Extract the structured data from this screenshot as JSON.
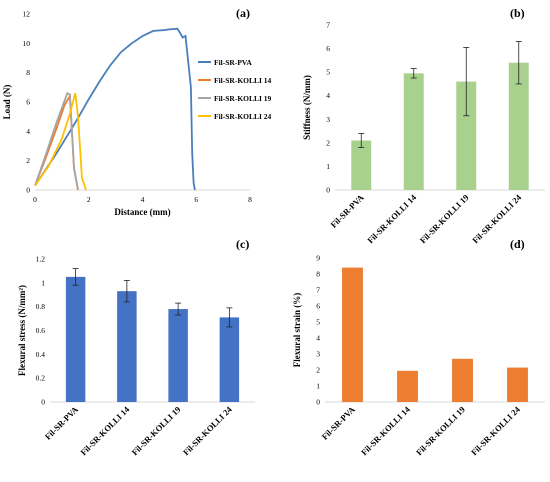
{
  "chart_data": [
    {
      "type": "line",
      "panel_label": "(a)",
      "xlabel": "Distance (mm)",
      "ylabel": "Load (N)",
      "xlim": [
        0,
        8
      ],
      "ylim": [
        0,
        12
      ],
      "xticks": [
        0,
        2,
        4,
        6,
        8
      ],
      "yticks": [
        0,
        2,
        4,
        6,
        8,
        10,
        12
      ],
      "legend_position": "right",
      "series": [
        {
          "name": "Fil-SR-PVA",
          "color": "#4a7ebb",
          "x": [
            0,
            0.4,
            0.8,
            1.2,
            1.6,
            2.0,
            2.4,
            2.8,
            3.2,
            3.6,
            4.0,
            4.4,
            4.8,
            5.0,
            5.3,
            5.5,
            5.6,
            5.8,
            5.85,
            5.9,
            5.95
          ],
          "y": [
            0.3,
            1.4,
            2.5,
            3.7,
            4.9,
            6.2,
            7.4,
            8.5,
            9.4,
            10.0,
            10.5,
            10.85,
            10.9,
            10.95,
            11.0,
            10.4,
            10.5,
            7.0,
            2.5,
            0.5,
            0
          ]
        },
        {
          "name": "Fil-SR-KOLLI 14",
          "color": "#ed7d31",
          "x": [
            0,
            0.4,
            0.8,
            1.1,
            1.3,
            1.45,
            1.6
          ],
          "y": [
            0.3,
            2.2,
            4.2,
            5.8,
            6.4,
            1.5,
            0
          ]
        },
        {
          "name": "Fil-SR-KOLLI 19",
          "color": "#a5a5a5",
          "x": [
            0,
            0.4,
            0.8,
            1.0,
            1.2,
            1.3,
            1.45,
            1.6
          ],
          "y": [
            0.3,
            2.4,
            4.6,
            5.6,
            6.6,
            6.5,
            1.5,
            0
          ]
        },
        {
          "name": "Fil-SR-KOLLI 24",
          "color": "#ffc000",
          "x": [
            0,
            0.5,
            1.0,
            1.3,
            1.5,
            1.6,
            1.75,
            1.9
          ],
          "y": [
            0.3,
            1.6,
            3.5,
            5.2,
            6.6,
            5.0,
            0.8,
            0
          ]
        }
      ]
    },
    {
      "type": "bar",
      "panel_label": "(b)",
      "ylabel": "Stiffness (N/mm)",
      "ylim": [
        0,
        7
      ],
      "yticks": [
        0,
        1,
        2,
        3,
        4,
        5,
        6,
        7
      ],
      "color": "#a9d18e",
      "categories": [
        "Fil-SR-PVA",
        "Fil-SR-KOLLI 14",
        "Fil-SR-KOLLI 19",
        "Fil-SR-KOLLI 24"
      ],
      "values": [
        2.1,
        4.95,
        4.6,
        5.4
      ],
      "errors": [
        0.3,
        0.2,
        1.45,
        0.9
      ]
    },
    {
      "type": "bar",
      "panel_label": "(c)",
      "ylabel": "Flexural stress (N/mm²)",
      "ylim": [
        0,
        1.2
      ],
      "yticks": [
        0,
        0.2,
        0.4,
        0.6,
        0.8,
        1,
        1.2
      ],
      "color": "#4472c4",
      "categories": [
        "Fil-SR-PVA",
        "Fil-SR-KOLLI 14",
        "Fil-SR-KOLLI 19",
        "Fil-SR-KOLLI 24"
      ],
      "values": [
        1.05,
        0.93,
        0.78,
        0.71
      ],
      "errors": [
        0.07,
        0.09,
        0.05,
        0.08
      ]
    },
    {
      "type": "bar",
      "panel_label": "(d)",
      "ylabel": "Flexural strain (%)",
      "ylim": [
        0,
        9
      ],
      "yticks": [
        0,
        1,
        2,
        3,
        4,
        5,
        6,
        7,
        8,
        9
      ],
      "color": "#ed7d31",
      "categories": [
        "Fil-SR-PVA",
        "Fil-SR-KOLLI 14",
        "Fil-SR-KOLLI 19",
        "Fil-SR-KOLLI 24"
      ],
      "values": [
        8.4,
        1.95,
        2.7,
        2.15
      ]
    }
  ]
}
